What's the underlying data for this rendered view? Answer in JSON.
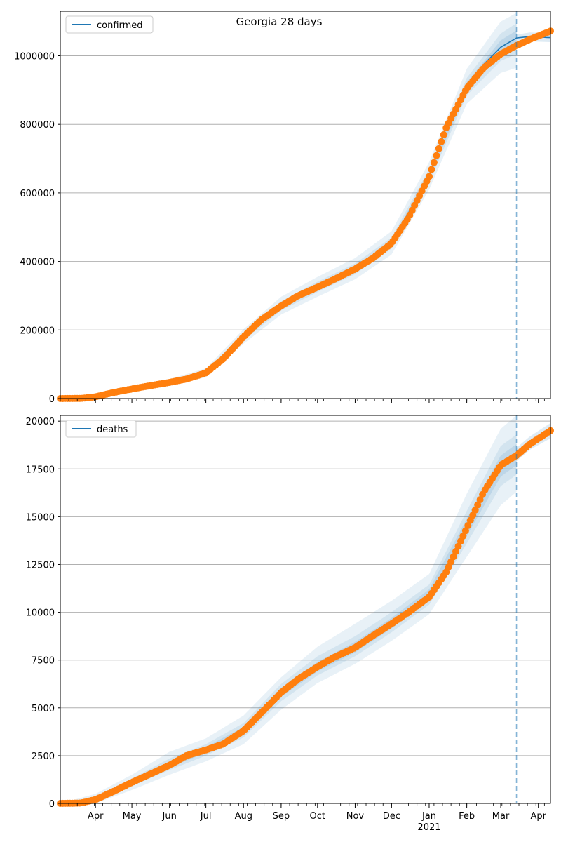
{
  "figure": {
    "title": "Georgia 28 days",
    "year_label": "2021"
  },
  "colors": {
    "model_line": "#1f77b4",
    "observed_points": "#ff7f0e",
    "band": "#1f77b4",
    "cutoff_line": "#1f77b4",
    "grid": "#b0b0b0"
  },
  "chart_data": [
    {
      "type": "line",
      "name": "confirmed",
      "series": [
        {
          "name": "confirmed",
          "role": "model fit with uncertainty bands"
        },
        {
          "role": "observed (markers)"
        }
      ],
      "x_axis": {
        "ticks": [
          "Apr",
          "May",
          "Jun",
          "Jul",
          "Aug",
          "Sep",
          "Oct",
          "Nov",
          "Dec",
          "Jan",
          "Feb",
          "Mar",
          "Apr"
        ],
        "tick_dates": [
          "2020-04-01",
          "2020-05-01",
          "2020-06-01",
          "2020-07-01",
          "2020-08-01",
          "2020-09-01",
          "2020-10-01",
          "2020-11-01",
          "2020-12-01",
          "2021-01-01",
          "2021-02-01",
          "2021-03-01",
          "2021-04-01"
        ],
        "range": [
          "2020-03-03",
          "2021-04-11"
        ],
        "tick_labels_visible": false
      },
      "y_axis": {
        "ylim": [
          0,
          1130000
        ],
        "ticks": [
          0,
          200000,
          400000,
          600000,
          800000,
          1000000
        ],
        "tick_labels": [
          "0",
          "200000",
          "400000",
          "600000",
          "800000",
          "1000000"
        ]
      },
      "grid": "horizontal",
      "legend": "top-left",
      "forecast_start": "2021-03-14",
      "observed_points": [
        [
          "2020-03-03",
          0
        ],
        [
          "2020-03-20",
          500
        ],
        [
          "2020-04-01",
          5000
        ],
        [
          "2020-04-15",
          17000
        ],
        [
          "2020-05-01",
          28000
        ],
        [
          "2020-05-15",
          37000
        ],
        [
          "2020-06-01",
          47000
        ],
        [
          "2020-06-15",
          57000
        ],
        [
          "2020-07-01",
          75000
        ],
        [
          "2020-07-15",
          115000
        ],
        [
          "2020-08-01",
          180000
        ],
        [
          "2020-08-15",
          228000
        ],
        [
          "2020-09-01",
          270000
        ],
        [
          "2020-09-15",
          300000
        ],
        [
          "2020-10-01",
          325000
        ],
        [
          "2020-10-15",
          348000
        ],
        [
          "2020-11-01",
          378000
        ],
        [
          "2020-11-15",
          408000
        ],
        [
          "2020-12-01",
          453000
        ],
        [
          "2020-12-15",
          528000
        ],
        [
          "2021-01-01",
          648000
        ],
        [
          "2021-01-15",
          790000
        ],
        [
          "2021-02-01",
          905000
        ],
        [
          "2021-02-15",
          965000
        ],
        [
          "2021-03-01",
          1005000
        ],
        [
          "2021-03-14",
          1030000
        ],
        [
          "2021-03-25",
          1048000
        ],
        [
          "2021-04-11",
          1072000
        ]
      ],
      "model_line": [
        [
          "2020-03-03",
          0
        ],
        [
          "2020-04-01",
          5000
        ],
        [
          "2020-05-01",
          28000
        ],
        [
          "2020-06-01",
          47000
        ],
        [
          "2020-07-01",
          75000
        ],
        [
          "2020-08-01",
          180000
        ],
        [
          "2020-09-01",
          270000
        ],
        [
          "2020-10-01",
          325000
        ],
        [
          "2020-11-01",
          378000
        ],
        [
          "2020-12-01",
          453000
        ],
        [
          "2021-01-01",
          650000
        ],
        [
          "2021-01-15",
          790000
        ],
        [
          "2021-02-01",
          910000
        ],
        [
          "2021-02-15",
          975000
        ],
        [
          "2021-03-01",
          1025000
        ],
        [
          "2021-03-14",
          1052000
        ],
        [
          "2021-03-25",
          1056000
        ],
        [
          "2021-04-11",
          1053000
        ]
      ],
      "band_outer": [
        [
          "2020-03-03",
          0,
          0
        ],
        [
          "2020-04-01",
          0,
          8000
        ],
        [
          "2020-05-01",
          18000,
          38000
        ],
        [
          "2020-06-01",
          37000,
          57000
        ],
        [
          "2020-07-01",
          62000,
          88000
        ],
        [
          "2020-08-01",
          160000,
          202000
        ],
        [
          "2020-09-01",
          245000,
          297000
        ],
        [
          "2020-10-01",
          297000,
          355000
        ],
        [
          "2020-11-01",
          348000,
          410000
        ],
        [
          "2020-12-01",
          420000,
          488000
        ],
        [
          "2021-01-01",
          610000,
          690000
        ],
        [
          "2021-02-01",
          860000,
          962000
        ],
        [
          "2021-03-01",
          950000,
          1100000
        ],
        [
          "2021-03-14",
          965000,
          1125000
        ]
      ],
      "band_mid": [
        [
          "2020-03-03",
          0,
          0
        ],
        [
          "2020-04-01",
          2000,
          7000
        ],
        [
          "2020-05-01",
          23000,
          33000
        ],
        [
          "2020-06-01",
          42000,
          52000
        ],
        [
          "2020-07-01",
          68000,
          82000
        ],
        [
          "2020-08-01",
          170000,
          191000
        ],
        [
          "2020-09-01",
          257000,
          284000
        ],
        [
          "2020-10-01",
          311000,
          341000
        ],
        [
          "2020-11-01",
          363000,
          394000
        ],
        [
          "2020-12-01",
          437000,
          470000
        ],
        [
          "2021-01-01",
          630000,
          670000
        ],
        [
          "2021-02-01",
          885000,
          935000
        ],
        [
          "2021-03-01",
          985000,
          1065000
        ],
        [
          "2021-03-14",
          1005000,
          1095000
        ]
      ],
      "band_inner": [
        [
          "2020-03-03",
          0,
          0
        ],
        [
          "2020-04-01",
          3500,
          6000
        ],
        [
          "2020-05-01",
          26000,
          30000
        ],
        [
          "2020-06-01",
          45000,
          49000
        ],
        [
          "2020-07-01",
          72000,
          78000
        ],
        [
          "2020-08-01",
          176000,
          185000
        ],
        [
          "2020-09-01",
          264000,
          276000
        ],
        [
          "2020-10-01",
          318000,
          332000
        ],
        [
          "2020-11-01",
          371000,
          386000
        ],
        [
          "2020-12-01",
          445000,
          461000
        ],
        [
          "2021-01-01",
          641000,
          659000
        ],
        [
          "2021-02-01",
          898000,
          922000
        ],
        [
          "2021-03-01",
          1005000,
          1045000
        ],
        [
          "2021-03-14",
          1030000,
          1074000
        ]
      ],
      "band_forecast": [
        [
          "2021-03-14",
          1040000,
          1062000
        ],
        [
          "2021-03-25",
          1042000,
          1068000
        ],
        [
          "2021-04-11",
          1040000,
          1066000
        ]
      ]
    },
    {
      "type": "line",
      "name": "deaths",
      "series": [
        {
          "name": "deaths",
          "role": "model fit with uncertainty bands"
        },
        {
          "role": "observed (markers)"
        }
      ],
      "x_axis": {
        "ticks": [
          "Apr",
          "May",
          "Jun",
          "Jul",
          "Aug",
          "Sep",
          "Oct",
          "Nov",
          "Dec",
          "Jan",
          "Feb",
          "Mar",
          "Apr"
        ],
        "tick_dates": [
          "2020-04-01",
          "2020-05-01",
          "2020-06-01",
          "2020-07-01",
          "2020-08-01",
          "2020-09-01",
          "2020-10-01",
          "2020-11-01",
          "2020-12-01",
          "2021-01-01",
          "2021-02-01",
          "2021-03-01",
          "2021-04-01"
        ],
        "range": [
          "2020-03-03",
          "2021-04-11"
        ],
        "tick_labels_visible": true
      },
      "y_axis": {
        "ylim": [
          0,
          20300
        ],
        "ticks": [
          0,
          2500,
          5000,
          7500,
          10000,
          12500,
          15000,
          17500,
          20000
        ],
        "tick_labels": [
          "0",
          "2500",
          "5000",
          "7500",
          "10000",
          "12500",
          "15000",
          "17500",
          "20000"
        ]
      },
      "grid": "horizontal",
      "legend": "top-left",
      "forecast_start": "2021-03-14",
      "observed_points": [
        [
          "2020-03-03",
          0
        ],
        [
          "2020-03-20",
          20
        ],
        [
          "2020-04-01",
          200
        ],
        [
          "2020-04-15",
          600
        ],
        [
          "2020-05-01",
          1100
        ],
        [
          "2020-05-15",
          1500
        ],
        [
          "2020-06-01",
          2000
        ],
        [
          "2020-06-15",
          2500
        ],
        [
          "2020-07-01",
          2800
        ],
        [
          "2020-07-15",
          3100
        ],
        [
          "2020-08-01",
          3800
        ],
        [
          "2020-08-15",
          4700
        ],
        [
          "2020-09-01",
          5800
        ],
        [
          "2020-09-15",
          6500
        ],
        [
          "2020-10-01",
          7150
        ],
        [
          "2020-10-15",
          7650
        ],
        [
          "2020-11-01",
          8150
        ],
        [
          "2020-11-15",
          8750
        ],
        [
          "2020-12-01",
          9400
        ],
        [
          "2020-12-15",
          10000
        ],
        [
          "2021-01-01",
          10800
        ],
        [
          "2021-01-15",
          12100
        ],
        [
          "2021-02-01",
          14400
        ],
        [
          "2021-02-15",
          16300
        ],
        [
          "2021-03-01",
          17700
        ],
        [
          "2021-03-14",
          18200
        ],
        [
          "2021-03-25",
          18800
        ],
        [
          "2021-04-11",
          19500
        ]
      ],
      "model_line": [
        [
          "2020-03-03",
          0
        ],
        [
          "2020-04-01",
          200
        ],
        [
          "2020-05-01",
          1100
        ],
        [
          "2020-06-01",
          2000
        ],
        [
          "2020-07-01",
          2800
        ],
        [
          "2020-08-01",
          3800
        ],
        [
          "2020-09-01",
          5800
        ],
        [
          "2020-10-01",
          7150
        ],
        [
          "2020-11-01",
          8150
        ],
        [
          "2020-12-01",
          9400
        ],
        [
          "2021-01-01",
          10900
        ],
        [
          "2021-01-15",
          12300
        ],
        [
          "2021-02-01",
          14400
        ],
        [
          "2021-02-15",
          16300
        ],
        [
          "2021-03-01",
          17600
        ],
        [
          "2021-03-14",
          18200
        ]
      ],
      "band_outer": [
        [
          "2020-03-03",
          0,
          0
        ],
        [
          "2020-04-01",
          0,
          500
        ],
        [
          "2020-05-01",
          700,
          1500
        ],
        [
          "2020-06-01",
          1500,
          2700
        ],
        [
          "2020-07-01",
          2200,
          3400
        ],
        [
          "2020-08-01",
          3100,
          4600
        ],
        [
          "2020-09-01",
          4900,
          6600
        ],
        [
          "2020-10-01",
          6300,
          8200
        ],
        [
          "2020-11-01",
          7300,
          9400
        ],
        [
          "2020-12-01",
          8500,
          10600
        ],
        [
          "2021-01-01",
          9900,
          12000
        ],
        [
          "2021-02-01",
          12900,
          16200
        ],
        [
          "2021-03-01",
          15600,
          19600
        ],
        [
          "2021-03-14",
          16300,
          20300
        ]
      ],
      "band_mid": [
        [
          "2020-03-03",
          0,
          0
        ],
        [
          "2020-04-01",
          100,
          350
        ],
        [
          "2020-05-01",
          900,
          1300
        ],
        [
          "2020-06-01",
          1750,
          2350
        ],
        [
          "2020-07-01",
          2500,
          3100
        ],
        [
          "2020-08-01",
          3450,
          4200
        ],
        [
          "2020-09-01",
          5350,
          6250
        ],
        [
          "2020-10-01",
          6700,
          7700
        ],
        [
          "2020-11-01",
          7700,
          8750
        ],
        [
          "2020-12-01",
          8950,
          10000
        ],
        [
          "2021-01-01",
          10400,
          11450
        ],
        [
          "2021-02-01",
          13600,
          15300
        ],
        [
          "2021-03-01",
          16600,
          18700
        ],
        [
          "2021-03-14",
          17200,
          19300
        ]
      ],
      "band_inner": [
        [
          "2020-03-03",
          0,
          0
        ],
        [
          "2020-04-01",
          150,
          260
        ],
        [
          "2020-05-01",
          1000,
          1200
        ],
        [
          "2020-06-01",
          1880,
          2130
        ],
        [
          "2020-07-01",
          2650,
          2950
        ],
        [
          "2020-08-01",
          3620,
          4000
        ],
        [
          "2020-09-01",
          5580,
          6050
        ],
        [
          "2020-10-01",
          6900,
          7400
        ],
        [
          "2020-11-01",
          7900,
          8450
        ],
        [
          "2020-12-01",
          9150,
          9700
        ],
        [
          "2021-01-01",
          10650,
          11200
        ],
        [
          "2021-02-01",
          14000,
          14900
        ],
        [
          "2021-03-01",
          17100,
          18200
        ],
        [
          "2021-03-14",
          17700,
          18800
        ]
      ],
      "band_forecast": [
        [
          "2021-03-14",
          17900,
          18600
        ],
        [
          "2021-03-25",
          18500,
          19200
        ],
        [
          "2021-04-11",
          19100,
          19900
        ]
      ]
    }
  ]
}
